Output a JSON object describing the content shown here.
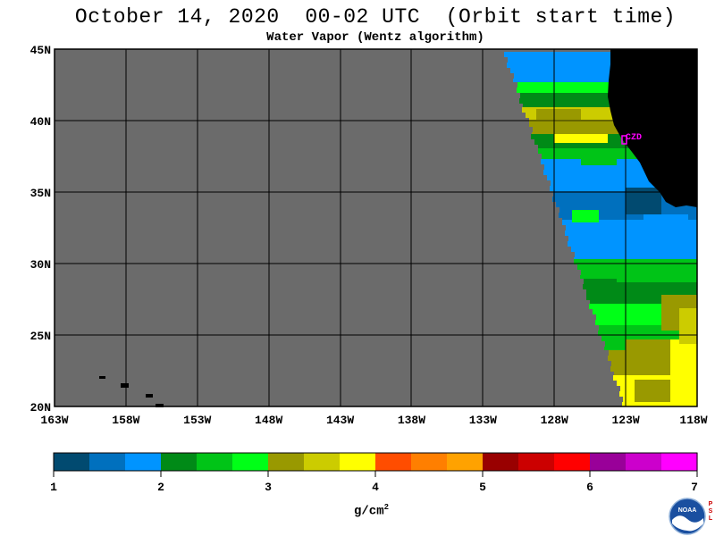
{
  "title": "October 14, 2020  00-02 UTC  (Orbit start time)",
  "subtitle": "Water Vapor (Wentz algorithm)",
  "map": {
    "lat_labels": [
      "45N",
      "40N",
      "35N",
      "30N",
      "25N",
      "20N"
    ],
    "lon_labels": [
      "163W",
      "158W",
      "153W",
      "148W",
      "143W",
      "138W",
      "133W",
      "128W",
      "123W",
      "118W"
    ],
    "station_label": "CZD",
    "colors": {
      "no_data": "#6b6b6b",
      "land": "#000000",
      "grid": "#000000",
      "station": "#ff00ff"
    }
  },
  "colorbar": {
    "tick_labels": [
      "1",
      "2",
      "3",
      "4",
      "5",
      "6",
      "7"
    ],
    "units_text": "g/cm",
    "units_exp": "2",
    "colors": [
      "#014a70",
      "#0070be",
      "#0094ff",
      "#008a17",
      "#00c417",
      "#00ff17",
      "#999900",
      "#cccc00",
      "#ffff00",
      "#ff4d00",
      "#ff7f00",
      "#ffa200",
      "#990000",
      "#cc0000",
      "#ff0000",
      "#990099",
      "#cc00cc",
      "#ff00ff"
    ]
  },
  "logo": {
    "label": "NOAA",
    "side_text": "PSL"
  }
}
